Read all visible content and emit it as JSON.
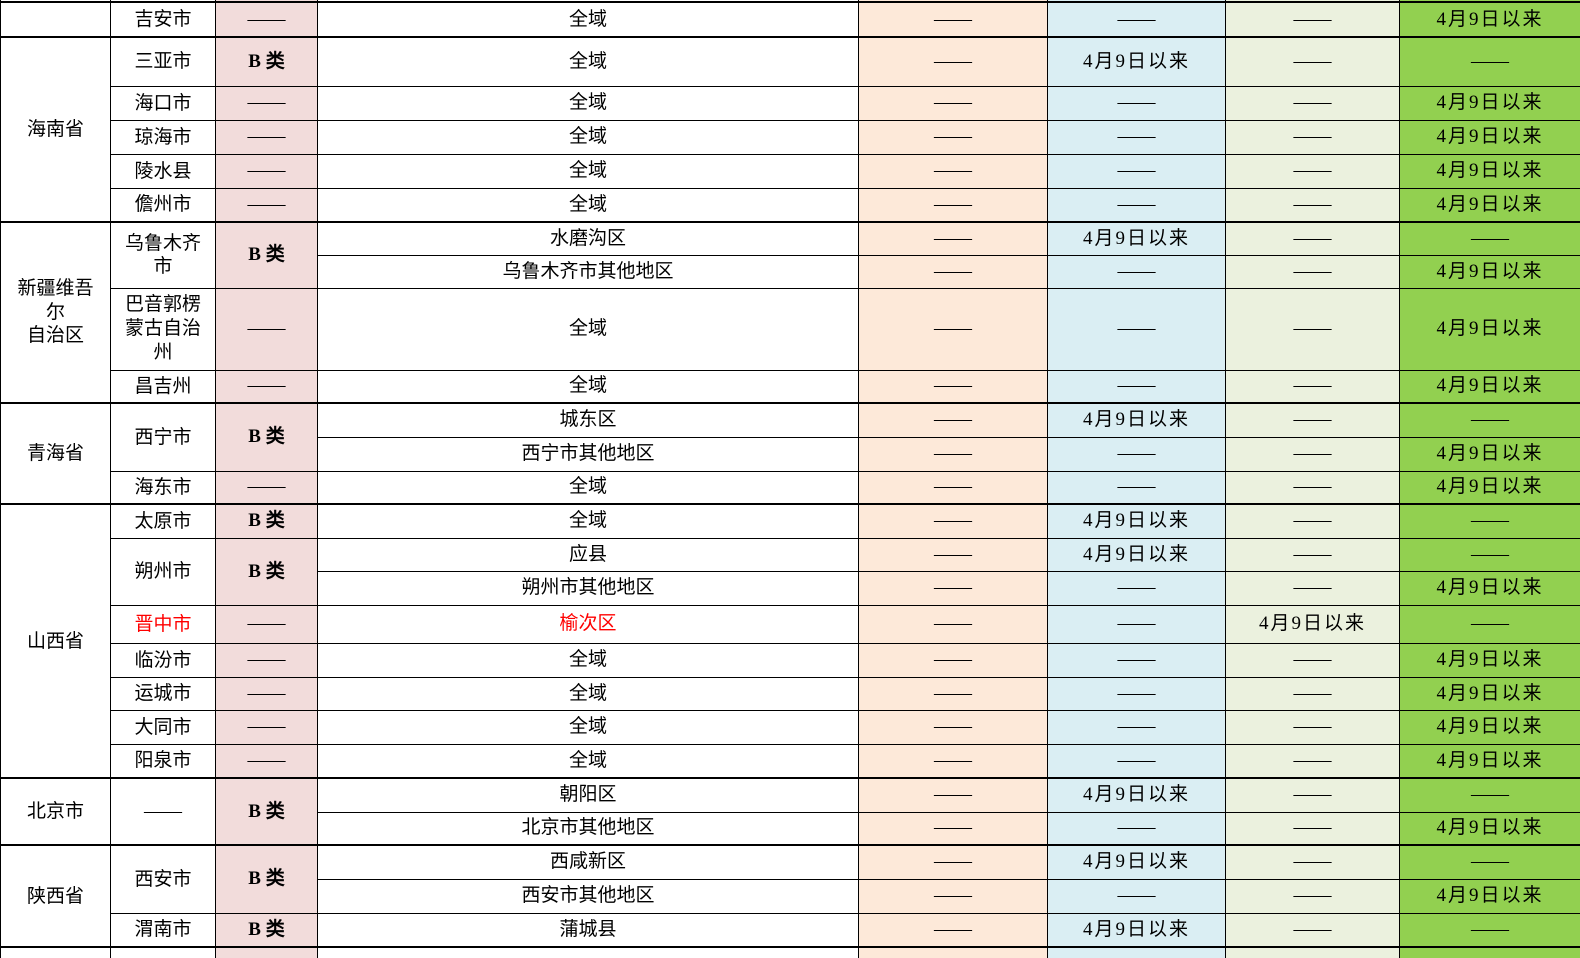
{
  "colors": {
    "category_col_bg": "#F2DCDB",
    "col5_bg": "#FDE9D9",
    "col6_bg": "#DAEEF3",
    "col7_bg": "#EBF1DE",
    "col8_bg": "#92D050",
    "category_text_blue": "#0070C0",
    "alert_red": "#FF0000",
    "border": "#000000"
  },
  "labels": {
    "dash": "——",
    "since_date": "4月9日以来",
    "category_b": "B 类",
    "whole_area": "全域"
  },
  "provinces": [
    {
      "name": "",
      "cities": [
        {
          "name": "吉安市",
          "category": "——",
          "red": false,
          "rows": [
            {
              "region": "全域",
              "red": false,
              "v1": "——",
              "v2": "——",
              "v3": "——",
              "v4": "4月9日以来"
            }
          ]
        }
      ]
    },
    {
      "name": "海南省",
      "cities": [
        {
          "name": "三亚市",
          "category": "B 类",
          "red": false,
          "rows": [
            {
              "region": "全域",
              "red": false,
              "v1": "——",
              "v2": "4月9日以来",
              "v3": "——",
              "v4": "——"
            }
          ]
        },
        {
          "name": "海口市",
          "category": "——",
          "red": false,
          "rows": [
            {
              "region": "全域",
              "red": false,
              "v1": "——",
              "v2": "——",
              "v3": "——",
              "v4": "4月9日以来"
            }
          ]
        },
        {
          "name": "琼海市",
          "category": "——",
          "red": false,
          "rows": [
            {
              "region": "全域",
              "red": false,
              "v1": "——",
              "v2": "——",
              "v3": "——",
              "v4": "4月9日以来"
            }
          ]
        },
        {
          "name": "陵水县",
          "category": "——",
          "red": false,
          "rows": [
            {
              "region": "全域",
              "red": false,
              "v1": "——",
              "v2": "——",
              "v3": "——",
              "v4": "4月9日以来"
            }
          ]
        },
        {
          "name": "儋州市",
          "category": "——",
          "red": false,
          "rows": [
            {
              "region": "全域",
              "red": false,
              "v1": "——",
              "v2": "——",
              "v3": "——",
              "v4": "4月9日以来"
            }
          ]
        }
      ]
    },
    {
      "name": "新疆维吾尔\n自治区",
      "cities": [
        {
          "name": "乌鲁木齐市",
          "category": "B 类",
          "red": false,
          "rows": [
            {
              "region": "水磨沟区",
              "red": false,
              "v1": "——",
              "v2": "4月9日以来",
              "v3": "——",
              "v4": "——"
            },
            {
              "region": "乌鲁木齐市其他地区",
              "red": false,
              "v1": "——",
              "v2": "——",
              "v3": "——",
              "v4": "4月9日以来"
            }
          ]
        },
        {
          "name": "巴音郭楞蒙古自治州",
          "category": "——",
          "red": false,
          "rows": [
            {
              "region": "全域",
              "red": false,
              "v1": "——",
              "v2": "——",
              "v3": "——",
              "v4": "4月9日以来"
            }
          ]
        },
        {
          "name": "昌吉州",
          "category": "——",
          "red": false,
          "rows": [
            {
              "region": "全域",
              "red": false,
              "v1": "——",
              "v2": "——",
              "v3": "——",
              "v4": "4月9日以来"
            }
          ]
        }
      ]
    },
    {
      "name": "青海省",
      "cities": [
        {
          "name": "西宁市",
          "category": "B 类",
          "red": false,
          "rows": [
            {
              "region": "城东区",
              "red": false,
              "v1": "——",
              "v2": "4月9日以来",
              "v3": "——",
              "v4": "——"
            },
            {
              "region": "西宁市其他地区",
              "red": false,
              "v1": "——",
              "v2": "——",
              "v3": "——",
              "v4": "4月9日以来"
            }
          ]
        },
        {
          "name": "海东市",
          "category": "——",
          "red": false,
          "rows": [
            {
              "region": "全域",
              "red": false,
              "v1": "——",
              "v2": "——",
              "v3": "——",
              "v4": "4月9日以来"
            }
          ]
        }
      ]
    },
    {
      "name": "山西省",
      "cities": [
        {
          "name": "太原市",
          "category": "B 类",
          "red": false,
          "rows": [
            {
              "region": "全域",
              "red": false,
              "v1": "——",
              "v2": "4月9日以来",
              "v3": "——",
              "v4": "——"
            }
          ]
        },
        {
          "name": "朔州市",
          "category": "B 类",
          "red": false,
          "rows": [
            {
              "region": "应县",
              "red": false,
              "v1": "——",
              "v2": "4月9日以来",
              "v3": "——",
              "v4": "——"
            },
            {
              "region": "朔州市其他地区",
              "red": false,
              "v1": "——",
              "v2": "——",
              "v3": "——",
              "v4": "4月9日以来"
            }
          ]
        },
        {
          "name": "晋中市",
          "category": "——",
          "red": true,
          "rows": [
            {
              "region": "榆次区",
              "red": true,
              "v1": "——",
              "v2": "——",
              "v3": "4月9日以来",
              "v4": "——"
            }
          ]
        },
        {
          "name": "临汾市",
          "category": "——",
          "red": false,
          "rows": [
            {
              "region": "全域",
              "red": false,
              "v1": "——",
              "v2": "——",
              "v3": "——",
              "v4": "4月9日以来"
            }
          ]
        },
        {
          "name": "运城市",
          "category": "——",
          "red": false,
          "rows": [
            {
              "region": "全域",
              "red": false,
              "v1": "——",
              "v2": "——",
              "v3": "——",
              "v4": "4月9日以来"
            }
          ]
        },
        {
          "name": "大同市",
          "category": "——",
          "red": false,
          "rows": [
            {
              "region": "全域",
              "red": false,
              "v1": "——",
              "v2": "——",
              "v3": "——",
              "v4": "4月9日以来"
            }
          ]
        },
        {
          "name": "阳泉市",
          "category": "——",
          "red": false,
          "rows": [
            {
              "region": "全域",
              "red": false,
              "v1": "——",
              "v2": "——",
              "v3": "——",
              "v4": "4月9日以来"
            }
          ]
        }
      ]
    },
    {
      "name": "北京市",
      "cities": [
        {
          "name": "——",
          "category": "B 类",
          "red": false,
          "rows": [
            {
              "region": "朝阳区",
              "red": false,
              "v1": "——",
              "v2": "4月9日以来",
              "v3": "——",
              "v4": "——"
            },
            {
              "region": "北京市其他地区",
              "red": false,
              "v1": "——",
              "v2": "——",
              "v3": "——",
              "v4": "4月9日以来"
            }
          ]
        }
      ]
    },
    {
      "name": "陕西省",
      "cities": [
        {
          "name": "西安市",
          "category": "B 类",
          "red": false,
          "rows": [
            {
              "region": "西咸新区",
              "red": false,
              "v1": "——",
              "v2": "4月9日以来",
              "v3": "——",
              "v4": "——"
            },
            {
              "region": "西安市其他地区",
              "red": false,
              "v1": "——",
              "v2": "——",
              "v3": "——",
              "v4": "4月9日以来"
            }
          ]
        },
        {
          "name": "渭南市",
          "category": "B 类",
          "red": false,
          "rows": [
            {
              "region": "蒲城县",
              "red": false,
              "v1": "——",
              "v2": "4月9日以来",
              "v3": "——",
              "v4": "——"
            }
          ]
        }
      ]
    }
  ]
}
